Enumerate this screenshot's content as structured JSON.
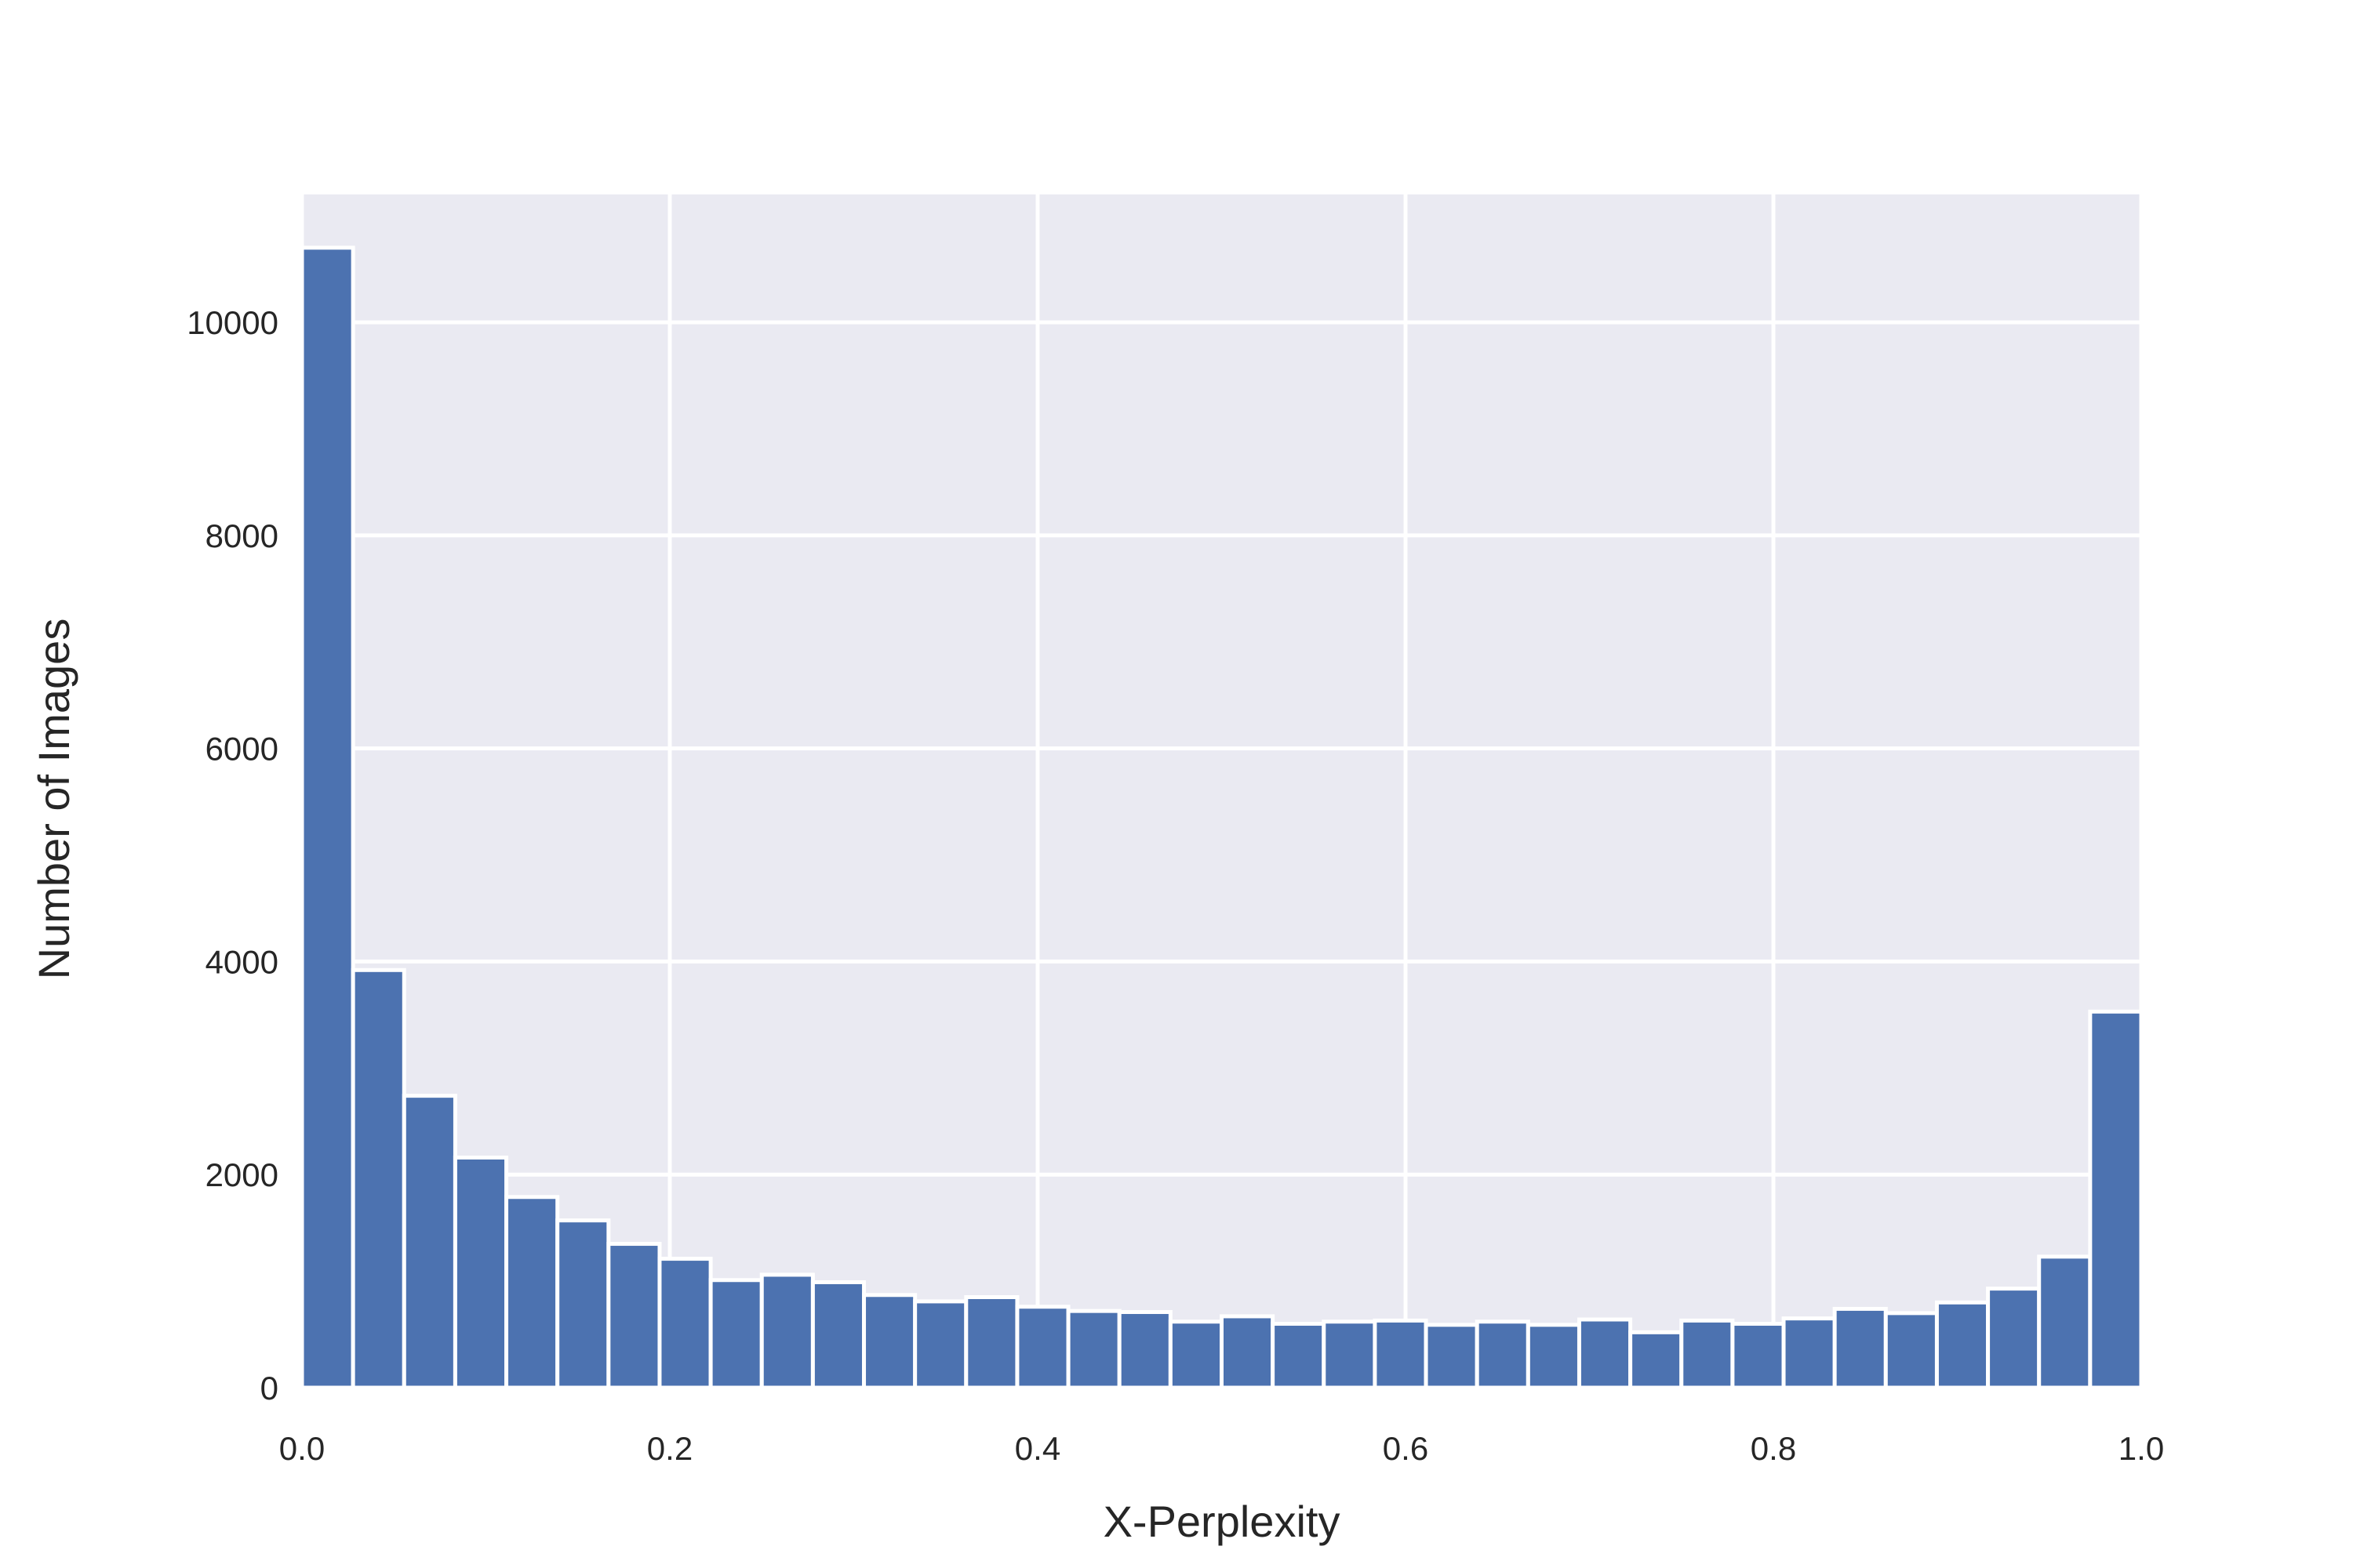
{
  "chart_data": {
    "type": "bar",
    "title": "",
    "xlabel": "X-Perplexity",
    "ylabel": "Number of Images",
    "xlim": [
      0.0,
      1.0
    ],
    "ylim": [
      0,
      11200
    ],
    "xticks": [
      "0.0",
      "0.2",
      "0.4",
      "0.6",
      "0.8",
      "1.0"
    ],
    "yticks": [
      "0",
      "2000",
      "4000",
      "6000",
      "8000",
      "10000"
    ],
    "grid": true,
    "bin_width": 0.02778,
    "bins_start": [
      0.0,
      0.02778,
      0.05556,
      0.08333,
      0.11111,
      0.13889,
      0.16667,
      0.19444,
      0.22222,
      0.25,
      0.27778,
      0.30556,
      0.33333,
      0.36111,
      0.38889,
      0.41667,
      0.44444,
      0.47222,
      0.5,
      0.52778,
      0.55556,
      0.58333,
      0.61111,
      0.63889,
      0.66667,
      0.69444,
      0.72222,
      0.75,
      0.77778,
      0.80556,
      0.83333,
      0.86111,
      0.88889,
      0.91667,
      0.94444,
      0.97222
    ],
    "values": [
      10700,
      3920,
      2740,
      2160,
      1790,
      1570,
      1350,
      1210,
      1010,
      1060,
      990,
      870,
      810,
      850,
      760,
      720,
      710,
      620,
      670,
      600,
      620,
      630,
      590,
      620,
      590,
      640,
      520,
      630,
      600,
      650,
      740,
      700,
      800,
      930,
      1230,
      3530
    ],
    "colors": {
      "bar": "#4c72b0",
      "background": "#eaeaf2",
      "grid": "#ffffff"
    }
  }
}
